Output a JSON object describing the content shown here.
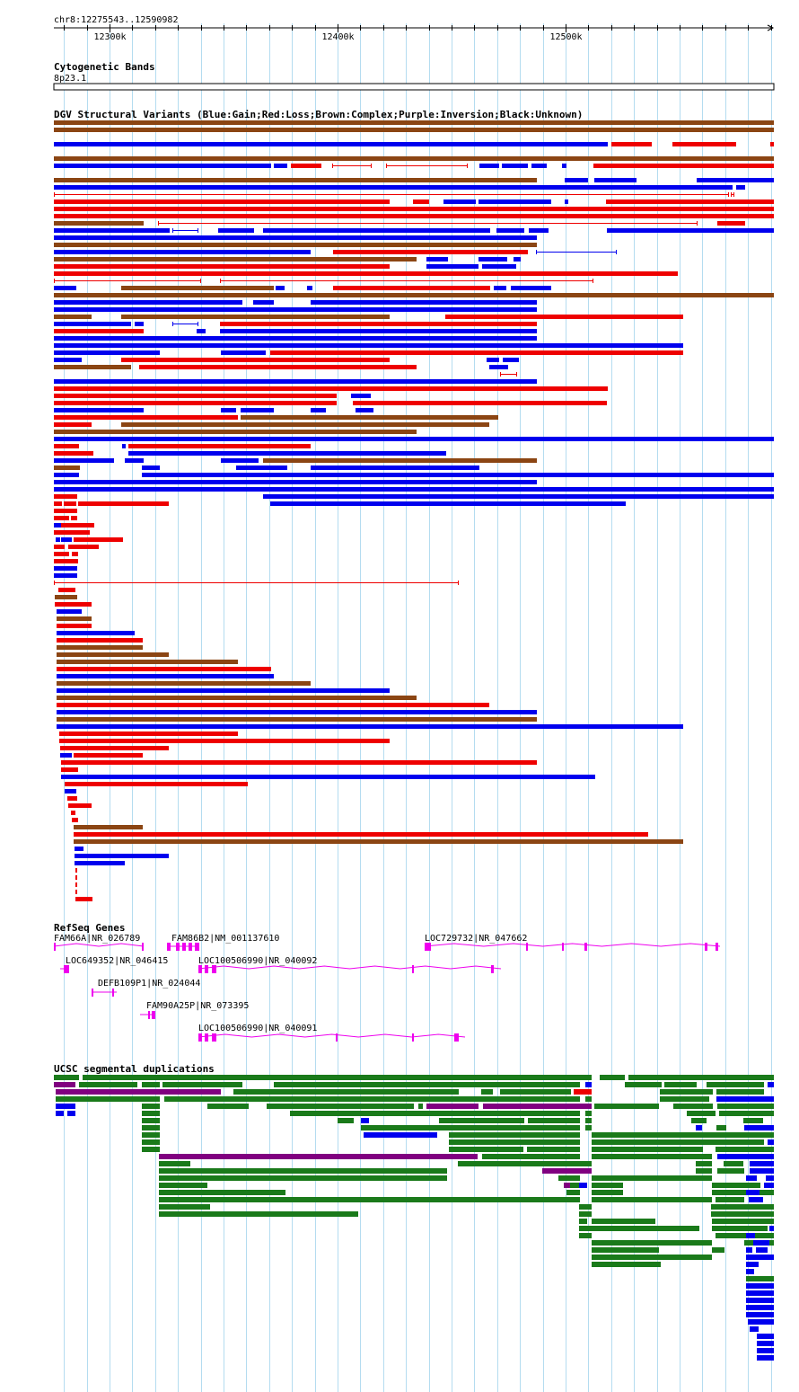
{
  "region": "chr8:12275543..12590982",
  "ruler": {
    "ticks": [
      {
        "pos": 12300000,
        "label": "12300k"
      },
      {
        "pos": 12400000,
        "label": "12400k"
      },
      {
        "pos": 12500000,
        "label": "12500k"
      }
    ]
  },
  "tracks": {
    "cytoband": {
      "title": "Cytogenetic Bands",
      "band": "8p23.1"
    },
    "dgv": {
      "title": "DGV Structural Variants (Blue:Gain;Red:Loss;Brown:Complex;Purple:Inversion;Black:Unknown)"
    },
    "refseq": {
      "title": "RefSeq Genes"
    },
    "segdup": {
      "title": "UCSC segmental duplications"
    }
  },
  "colors": {
    "gain": "#0000ee",
    "loss": "#ee0000",
    "complex": "#8b4513",
    "inversion": "#800080",
    "unknown": "#000000",
    "gene": "#ee00ee",
    "segdup_green": "#1a7a1a",
    "segdup_purple": "#800080",
    "segdup_blue": "#0000ee",
    "gridline": "#b4dcf0"
  },
  "genes": [
    {
      "label": "FAM66A|NR_026789"
    },
    {
      "label": "FAM86B2|NM_001137610"
    },
    {
      "label": "LOC729732|NR_047662"
    },
    {
      "label": "LOC649352|NR_046415"
    },
    {
      "label": "LOC100506990|NR_040092"
    },
    {
      "label": "DEFB109P1|NR_024044"
    },
    {
      "label": "FAM90A25P|NR_073395"
    },
    {
      "label": "LOC100506990|NR_040091"
    }
  ]
}
